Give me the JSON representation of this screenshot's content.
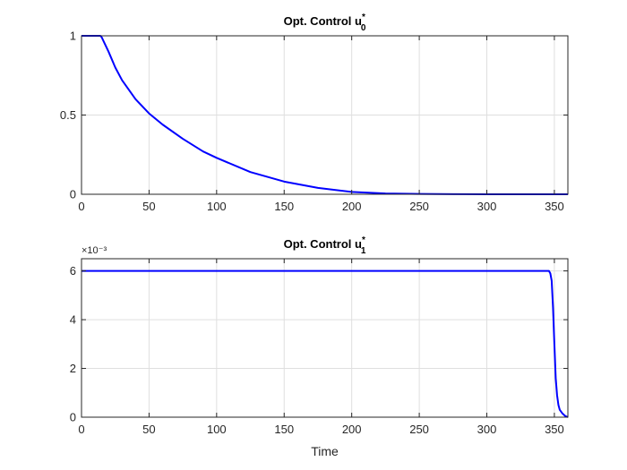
{
  "chart_data": [
    {
      "type": "line",
      "title": {
        "main": "Opt. Control u",
        "subscript": "0",
        "superscript": "*"
      },
      "xlabel": "",
      "ylabel": "",
      "xlim": [
        0,
        360
      ],
      "ylim": [
        0,
        1
      ],
      "xticks": [
        0,
        50,
        100,
        150,
        200,
        250,
        300,
        350
      ],
      "yticks": [
        0,
        0.5,
        1
      ],
      "ytick_labels": [
        "0",
        "0.5",
        "1"
      ],
      "grid": true,
      "color": "#0000ff",
      "series": [
        {
          "x": [
            0,
            14,
            15,
            20,
            25,
            30,
            40,
            50,
            60,
            75,
            90,
            100,
            125,
            150,
            175,
            200,
            225,
            250,
            275,
            300,
            330,
            360
          ],
          "y": [
            1,
            1,
            0.99,
            0.9,
            0.8,
            0.72,
            0.6,
            0.51,
            0.44,
            0.35,
            0.27,
            0.23,
            0.14,
            0.08,
            0.04,
            0.015,
            0.005,
            0.002,
            0.001,
            0,
            0,
            0
          ]
        }
      ]
    },
    {
      "type": "line",
      "title": {
        "main": "Opt. Control u",
        "subscript": "1",
        "superscript": "*"
      },
      "xlabel": "Time",
      "ylabel": "",
      "xlim": [
        0,
        360
      ],
      "ylim": [
        0,
        6.5
      ],
      "y_exponent": "×10⁻³",
      "xticks": [
        0,
        50,
        100,
        150,
        200,
        250,
        300,
        350
      ],
      "yticks": [
        0,
        2,
        4,
        6
      ],
      "ytick_labels": [
        "0",
        "2",
        "4",
        "6"
      ],
      "grid": true,
      "color": "#0000ff",
      "series": [
        {
          "x": [
            0,
            346,
            347,
            348,
            349,
            350,
            351,
            352,
            353,
            354,
            356,
            358,
            360
          ],
          "y": [
            6,
            6,
            5.9,
            5.6,
            4.5,
            3.0,
            1.6,
            0.9,
            0.5,
            0.3,
            0.15,
            0.05,
            0
          ]
        }
      ]
    }
  ]
}
